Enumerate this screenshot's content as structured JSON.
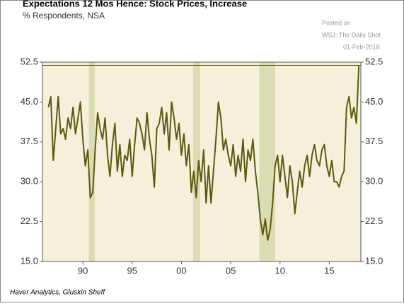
{
  "chart_data": {
    "type": "line",
    "title": "Expectations 12 Mos Hence: Stock Prices, Increase",
    "subtitle": "% Respondents, NSA",
    "annotations": [
      "Posted on",
      "WSJ: The Daily Shot",
      "01-Feb-2018"
    ],
    "source": "Haver Analytics, Gluskin Sheff",
    "x": [
      1986.5,
      1986.75,
      1987,
      1987.25,
      1987.5,
      1987.75,
      1988,
      1988.25,
      1988.5,
      1988.75,
      1989,
      1989.25,
      1989.5,
      1989.75,
      1990,
      1990.25,
      1990.5,
      1990.75,
      1991,
      1991.25,
      1991.5,
      1991.75,
      1992,
      1992.25,
      1992.5,
      1992.75,
      1993,
      1993.25,
      1993.5,
      1993.75,
      1994,
      1994.25,
      1994.5,
      1994.75,
      1995,
      1995.25,
      1995.5,
      1995.75,
      1996,
      1996.25,
      1996.5,
      1996.75,
      1997,
      1997.25,
      1997.5,
      1997.75,
      1998,
      1998.25,
      1998.5,
      1998.75,
      1999,
      1999.25,
      1999.5,
      1999.75,
      2000,
      2000.25,
      2000.5,
      2000.75,
      2001,
      2001.25,
      2001.5,
      2001.75,
      2002,
      2002.25,
      2002.5,
      2002.75,
      2003,
      2003.25,
      2003.5,
      2003.75,
      2004,
      2004.25,
      2004.5,
      2004.75,
      2005,
      2005.25,
      2005.5,
      2005.75,
      2006,
      2006.25,
      2006.5,
      2006.75,
      2007,
      2007.25,
      2007.5,
      2007.75,
      2008,
      2008.25,
      2008.5,
      2008.75,
      2009,
      2009.25,
      2009.5,
      2009.75,
      2010,
      2010.25,
      2010.5,
      2010.75,
      2011,
      2011.25,
      2011.5,
      2011.75,
      2012,
      2012.25,
      2012.5,
      2012.75,
      2013,
      2013.25,
      2013.5,
      2013.75,
      2014,
      2014.25,
      2014.5,
      2014.75,
      2015,
      2015.25,
      2015.5,
      2015.75,
      2016,
      2016.25,
      2016.5,
      2016.75,
      2017,
      2017.25,
      2017.5,
      2017.75,
      2018
    ],
    "series": [
      {
        "color": "#5b5a12",
        "values": [
          44,
          46,
          34,
          40,
          46,
          39,
          40,
          38,
          42,
          40,
          44,
          39,
          42,
          45,
          38,
          33,
          36,
          27,
          28,
          36,
          43,
          40,
          38,
          42,
          35,
          31,
          37,
          41,
          32,
          37,
          31,
          35,
          34,
          38,
          31,
          37,
          42,
          41,
          39,
          36,
          43,
          38,
          35,
          29,
          40,
          41,
          44,
          39,
          43,
          36,
          45,
          42,
          38,
          41,
          35,
          39,
          33,
          37,
          28,
          32,
          27,
          34,
          30,
          36,
          26,
          33,
          26,
          32,
          38,
          45,
          42,
          36,
          38,
          35,
          33,
          37,
          31,
          35,
          32,
          38,
          30,
          36,
          34,
          38,
          32,
          28,
          23,
          20,
          23,
          19,
          21,
          26,
          33,
          35,
          30,
          35,
          31,
          27,
          33,
          30,
          24,
          28,
          32,
          29,
          33,
          35,
          31,
          35,
          37,
          34,
          33,
          36,
          37,
          33,
          31,
          34,
          30,
          30,
          29,
          31,
          32,
          44,
          46,
          42,
          44,
          41,
          51.9
        ]
      }
    ],
    "shaded_ranges": [
      [
        1990.6,
        1991.2
      ],
      [
        2001.2,
        2001.9
      ],
      [
        2007.9,
        2009.5
      ]
    ],
    "reference_line": 51.9,
    "xlim": [
      1985.9,
      2018.2
    ],
    "xticks": [
      {
        "value": 1990,
        "label": "90"
      },
      {
        "value": 1995,
        "label": "95"
      },
      {
        "value": 2000,
        "label": "00"
      },
      {
        "value": 2005,
        "label": "05"
      },
      {
        "value": 2010,
        "label": "10"
      },
      {
        "value": 2015,
        "label": "15"
      }
    ],
    "ylim": [
      15,
      52.5
    ],
    "yticks": [
      {
        "value": 15,
        "label": "15.0"
      },
      22.5,
      {
        "value": 30,
        "label": "30.0"
      },
      37.5,
      {
        "value": 45,
        "label": "45.0"
      },
      52.5
    ]
  }
}
